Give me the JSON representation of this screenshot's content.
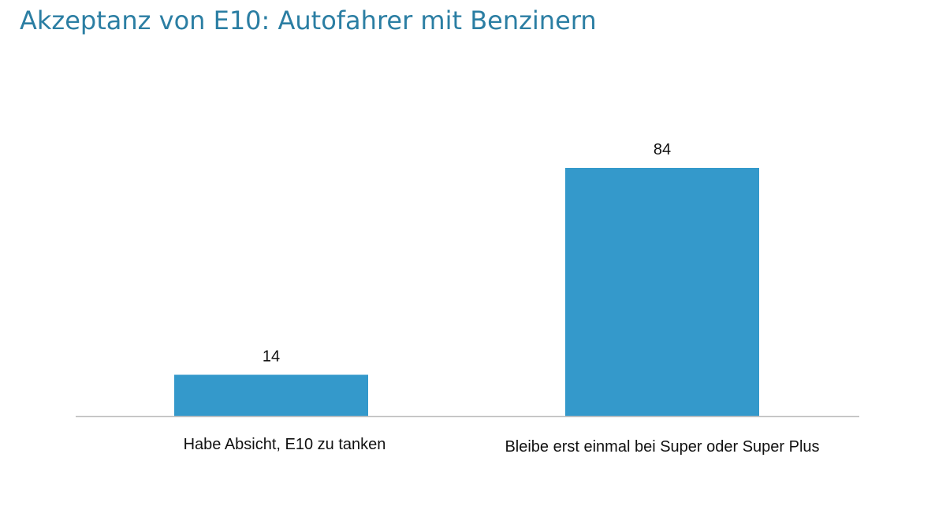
{
  "chart_data": {
    "type": "bar",
    "title": "Akzeptanz von E10: Autofahrer mit Benzinern",
    "categories": [
      "Habe Absicht, E10 zu tanken",
      "Bleibe erst einmal bei Super oder Super Plus"
    ],
    "values": [
      14,
      84
    ],
    "value_labels": [
      "14",
      "84"
    ],
    "xlabel": "",
    "ylabel": "",
    "ylim": [
      0,
      100
    ],
    "grid": false,
    "legend": "none",
    "bar_color": "#3499cb",
    "axis_color": "#bfbfbf"
  }
}
